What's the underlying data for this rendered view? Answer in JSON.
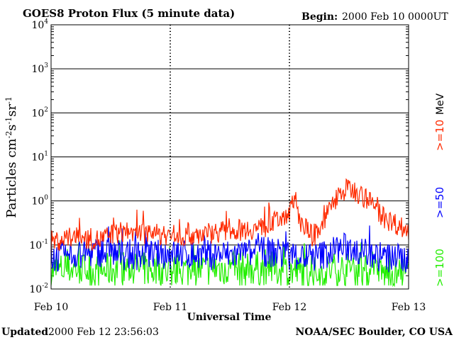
{
  "header": {
    "title": "GOES8 Proton Flux (5 minute data)",
    "begin_label": "Begin:",
    "begin_value": "2000 Feb 10 0000UT"
  },
  "footer": {
    "updated_label": "Updated",
    "updated_value": "2000 Feb 12 23:56:03",
    "credit": "NOAA/SEC Boulder, CO USA"
  },
  "chart_data": {
    "type": "line",
    "title": "GOES8 Proton Flux (5 minute data)",
    "xlabel": "Universal Time",
    "ylabel": "Particles cm-2s-1sr-1",
    "yscale": "log",
    "ylim": [
      0.01,
      10000
    ],
    "y_ticks": [
      0.01,
      0.1,
      1,
      10,
      100,
      1000,
      10000
    ],
    "y_tick_labels": [
      {
        "base": "10",
        "exp": "-2"
      },
      {
        "base": "10",
        "exp": "-1"
      },
      {
        "base": "10",
        "exp": "0"
      },
      {
        "base": "10",
        "exp": "1"
      },
      {
        "base": "10",
        "exp": "2"
      },
      {
        "base": "10",
        "exp": "3"
      },
      {
        "base": "10",
        "exp": "4"
      }
    ],
    "x_ticks": [
      "Feb 10",
      "Feb 11",
      "Feb 12",
      "Feb 13"
    ],
    "xlim_days": [
      0,
      3
    ],
    "grid": true,
    "legend_placement": "right",
    "legend_unit": "MeV",
    "series": [
      {
        "name": ">=10",
        "color": "#ff2a00",
        "points": [
          [
            0,
            0.12
          ],
          [
            0.2,
            0.15
          ],
          [
            0.4,
            0.13
          ],
          [
            0.6,
            0.2
          ],
          [
            0.8,
            0.18
          ],
          [
            1.0,
            0.16
          ],
          [
            1.2,
            0.17
          ],
          [
            1.4,
            0.2
          ],
          [
            1.6,
            0.22
          ],
          [
            1.8,
            0.25
          ],
          [
            1.9,
            0.35
          ],
          [
            2.0,
            0.6
          ],
          [
            2.05,
            1.0
          ],
          [
            2.1,
            0.3
          ],
          [
            2.2,
            0.15
          ],
          [
            2.3,
            0.4
          ],
          [
            2.4,
            1.3
          ],
          [
            2.5,
            2.0
          ],
          [
            2.6,
            1.4
          ],
          [
            2.7,
            0.8
          ],
          [
            2.8,
            0.4
          ],
          [
            2.9,
            0.3
          ],
          [
            3.0,
            0.2
          ]
        ]
      },
      {
        "name": ">=50",
        "color": "#0000ff",
        "points": [
          [
            0,
            0.05
          ],
          [
            0.2,
            0.06
          ],
          [
            0.4,
            0.07
          ],
          [
            0.6,
            0.06
          ],
          [
            0.8,
            0.06
          ],
          [
            1.0,
            0.06
          ],
          [
            1.2,
            0.06
          ],
          [
            1.4,
            0.06
          ],
          [
            1.6,
            0.06
          ],
          [
            1.8,
            0.07
          ],
          [
            2.0,
            0.06
          ],
          [
            2.2,
            0.05
          ],
          [
            2.4,
            0.08
          ],
          [
            2.5,
            0.09
          ],
          [
            2.6,
            0.07
          ],
          [
            2.8,
            0.05
          ],
          [
            3.0,
            0.05
          ]
        ]
      },
      {
        "name": ">=100",
        "color": "#22ee00",
        "points": [
          [
            0,
            0.025
          ],
          [
            0.2,
            0.03
          ],
          [
            0.4,
            0.025
          ],
          [
            0.6,
            0.03
          ],
          [
            0.8,
            0.028
          ],
          [
            1.0,
            0.025
          ],
          [
            1.2,
            0.028
          ],
          [
            1.4,
            0.03
          ],
          [
            1.6,
            0.028
          ],
          [
            1.8,
            0.03
          ],
          [
            2.0,
            0.025
          ],
          [
            2.2,
            0.022
          ],
          [
            2.4,
            0.028
          ],
          [
            2.6,
            0.025
          ],
          [
            2.8,
            0.022
          ],
          [
            3.0,
            0.022
          ]
        ]
      }
    ]
  }
}
